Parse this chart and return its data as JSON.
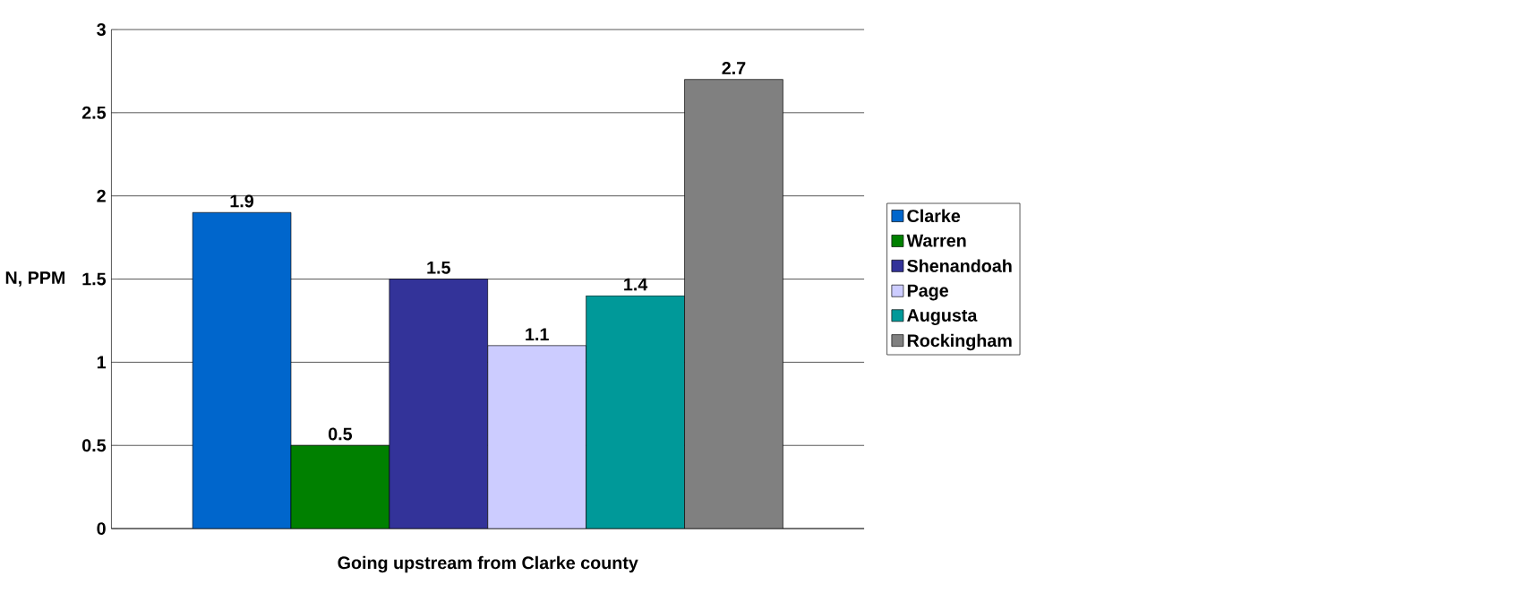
{
  "chart_data": {
    "type": "bar",
    "xlabel": "Going upstream from Clarke county",
    "ylabel": "N, PPM",
    "categories": [
      null
    ],
    "series": [
      {
        "name": "Clarke",
        "color": "#0066cc",
        "values": [
          1.9
        ]
      },
      {
        "name": "Warren",
        "color": "#008000",
        "values": [
          0.5
        ]
      },
      {
        "name": "Shenandoah",
        "color": "#333399",
        "values": [
          1.5
        ]
      },
      {
        "name": "Page",
        "color": "#ccccff",
        "values": [
          1.1
        ]
      },
      {
        "name": "Augusta",
        "color": "#009999",
        "values": [
          1.4
        ]
      },
      {
        "name": "Rockingham",
        "color": "#808080",
        "values": [
          2.7
        ]
      }
    ],
    "ylim": [
      0,
      3
    ],
    "yticks": [
      0,
      0.5,
      1,
      1.5,
      2,
      2.5,
      3
    ],
    "grid": "y",
    "legend": "right",
    "data_labels": true
  }
}
